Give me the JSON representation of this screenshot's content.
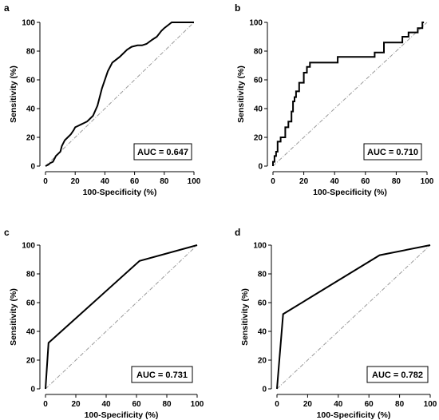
{
  "chart_data": [
    {
      "type": "line",
      "panel": "a",
      "xlabel": "100-Specificity (%)",
      "ylabel": "Sensitivity (%)",
      "xlim": [
        0,
        100
      ],
      "ylim": [
        0,
        100
      ],
      "xticks": [
        "0",
        "20",
        "40",
        "60",
        "80",
        "100"
      ],
      "yticks": [
        "0",
        "20",
        "40",
        "60",
        "80",
        "100"
      ],
      "annotation": "AUC = 0.647",
      "reference_line": true,
      "series": [
        {
          "x": [
            0,
            2,
            3,
            5,
            6,
            7,
            9,
            10,
            11,
            13,
            15,
            17,
            19,
            20,
            22,
            24,
            26,
            28,
            30,
            32,
            35,
            38,
            42,
            45,
            50,
            52,
            55,
            58,
            62,
            65,
            68,
            72,
            75,
            78,
            80,
            85,
            100
          ],
          "y": [
            0,
            1,
            2,
            3,
            5,
            7,
            9,
            10,
            14,
            18,
            20,
            22,
            25,
            27,
            28,
            29,
            30,
            31,
            33,
            35,
            42,
            54,
            66,
            72,
            76,
            78,
            81,
            83,
            84,
            84,
            85,
            88,
            90,
            94,
            96,
            100,
            100
          ]
        }
      ]
    },
    {
      "type": "line",
      "panel": "b",
      "xlabel": "100-Specificity (%)",
      "ylabel": "Sensitivity (%)",
      "xlim": [
        0,
        100
      ],
      "ylim": [
        0,
        100
      ],
      "xticks": [
        "0",
        "20",
        "40",
        "60",
        "80",
        "100"
      ],
      "yticks": [
        "0",
        "20",
        "40",
        "60",
        "80",
        "100"
      ],
      "annotation": "AUC = 0.710",
      "reference_line": true,
      "series": [
        {
          "x": [
            0,
            0,
            1,
            1,
            2,
            2,
            3,
            3,
            5,
            5,
            8,
            8,
            10,
            10,
            12,
            12,
            13,
            13,
            14,
            14,
            15,
            15,
            17,
            17,
            20,
            20,
            22,
            22,
            24,
            24,
            42,
            42,
            66,
            66,
            72,
            72,
            84,
            84,
            88,
            88,
            94,
            94,
            97,
            97,
            98,
            98
          ],
          "y": [
            0,
            3,
            3,
            7,
            7,
            10,
            10,
            17,
            17,
            20,
            20,
            27,
            27,
            31,
            31,
            38,
            38,
            45,
            45,
            48,
            48,
            52,
            52,
            58,
            58,
            65,
            65,
            69,
            69,
            72,
            72,
            76,
            76,
            79,
            79,
            86,
            86,
            90,
            90,
            93,
            93,
            96,
            96,
            100,
            100,
            100
          ]
        }
      ]
    },
    {
      "type": "line",
      "panel": "c",
      "xlabel": "100-Specificity (%)",
      "ylabel": "Sensitivity (%)",
      "xlim": [
        0,
        100
      ],
      "ylim": [
        0,
        100
      ],
      "xticks": [
        "0",
        "20",
        "40",
        "60",
        "80",
        "100"
      ],
      "yticks": [
        "0",
        "20",
        "40",
        "60",
        "80",
        "100"
      ],
      "annotation": "AUC = 0.731",
      "reference_line": true,
      "series": [
        {
          "x": [
            0,
            2,
            62,
            100
          ],
          "y": [
            0,
            32,
            89,
            100
          ]
        }
      ]
    },
    {
      "type": "line",
      "panel": "d",
      "xlabel": "100-Specificity (%)",
      "ylabel": "Sensitivity (%)",
      "xlim": [
        0,
        100
      ],
      "ylim": [
        0,
        100
      ],
      "xticks": [
        "0",
        "20",
        "40",
        "60",
        "80",
        "100"
      ],
      "yticks": [
        "0",
        "20",
        "40",
        "60",
        "80",
        "100"
      ],
      "annotation": "AUC = 0.782",
      "reference_line": true,
      "series": [
        {
          "x": [
            0,
            4,
            67,
            100
          ],
          "y": [
            0,
            52,
            93,
            100
          ]
        }
      ]
    }
  ]
}
